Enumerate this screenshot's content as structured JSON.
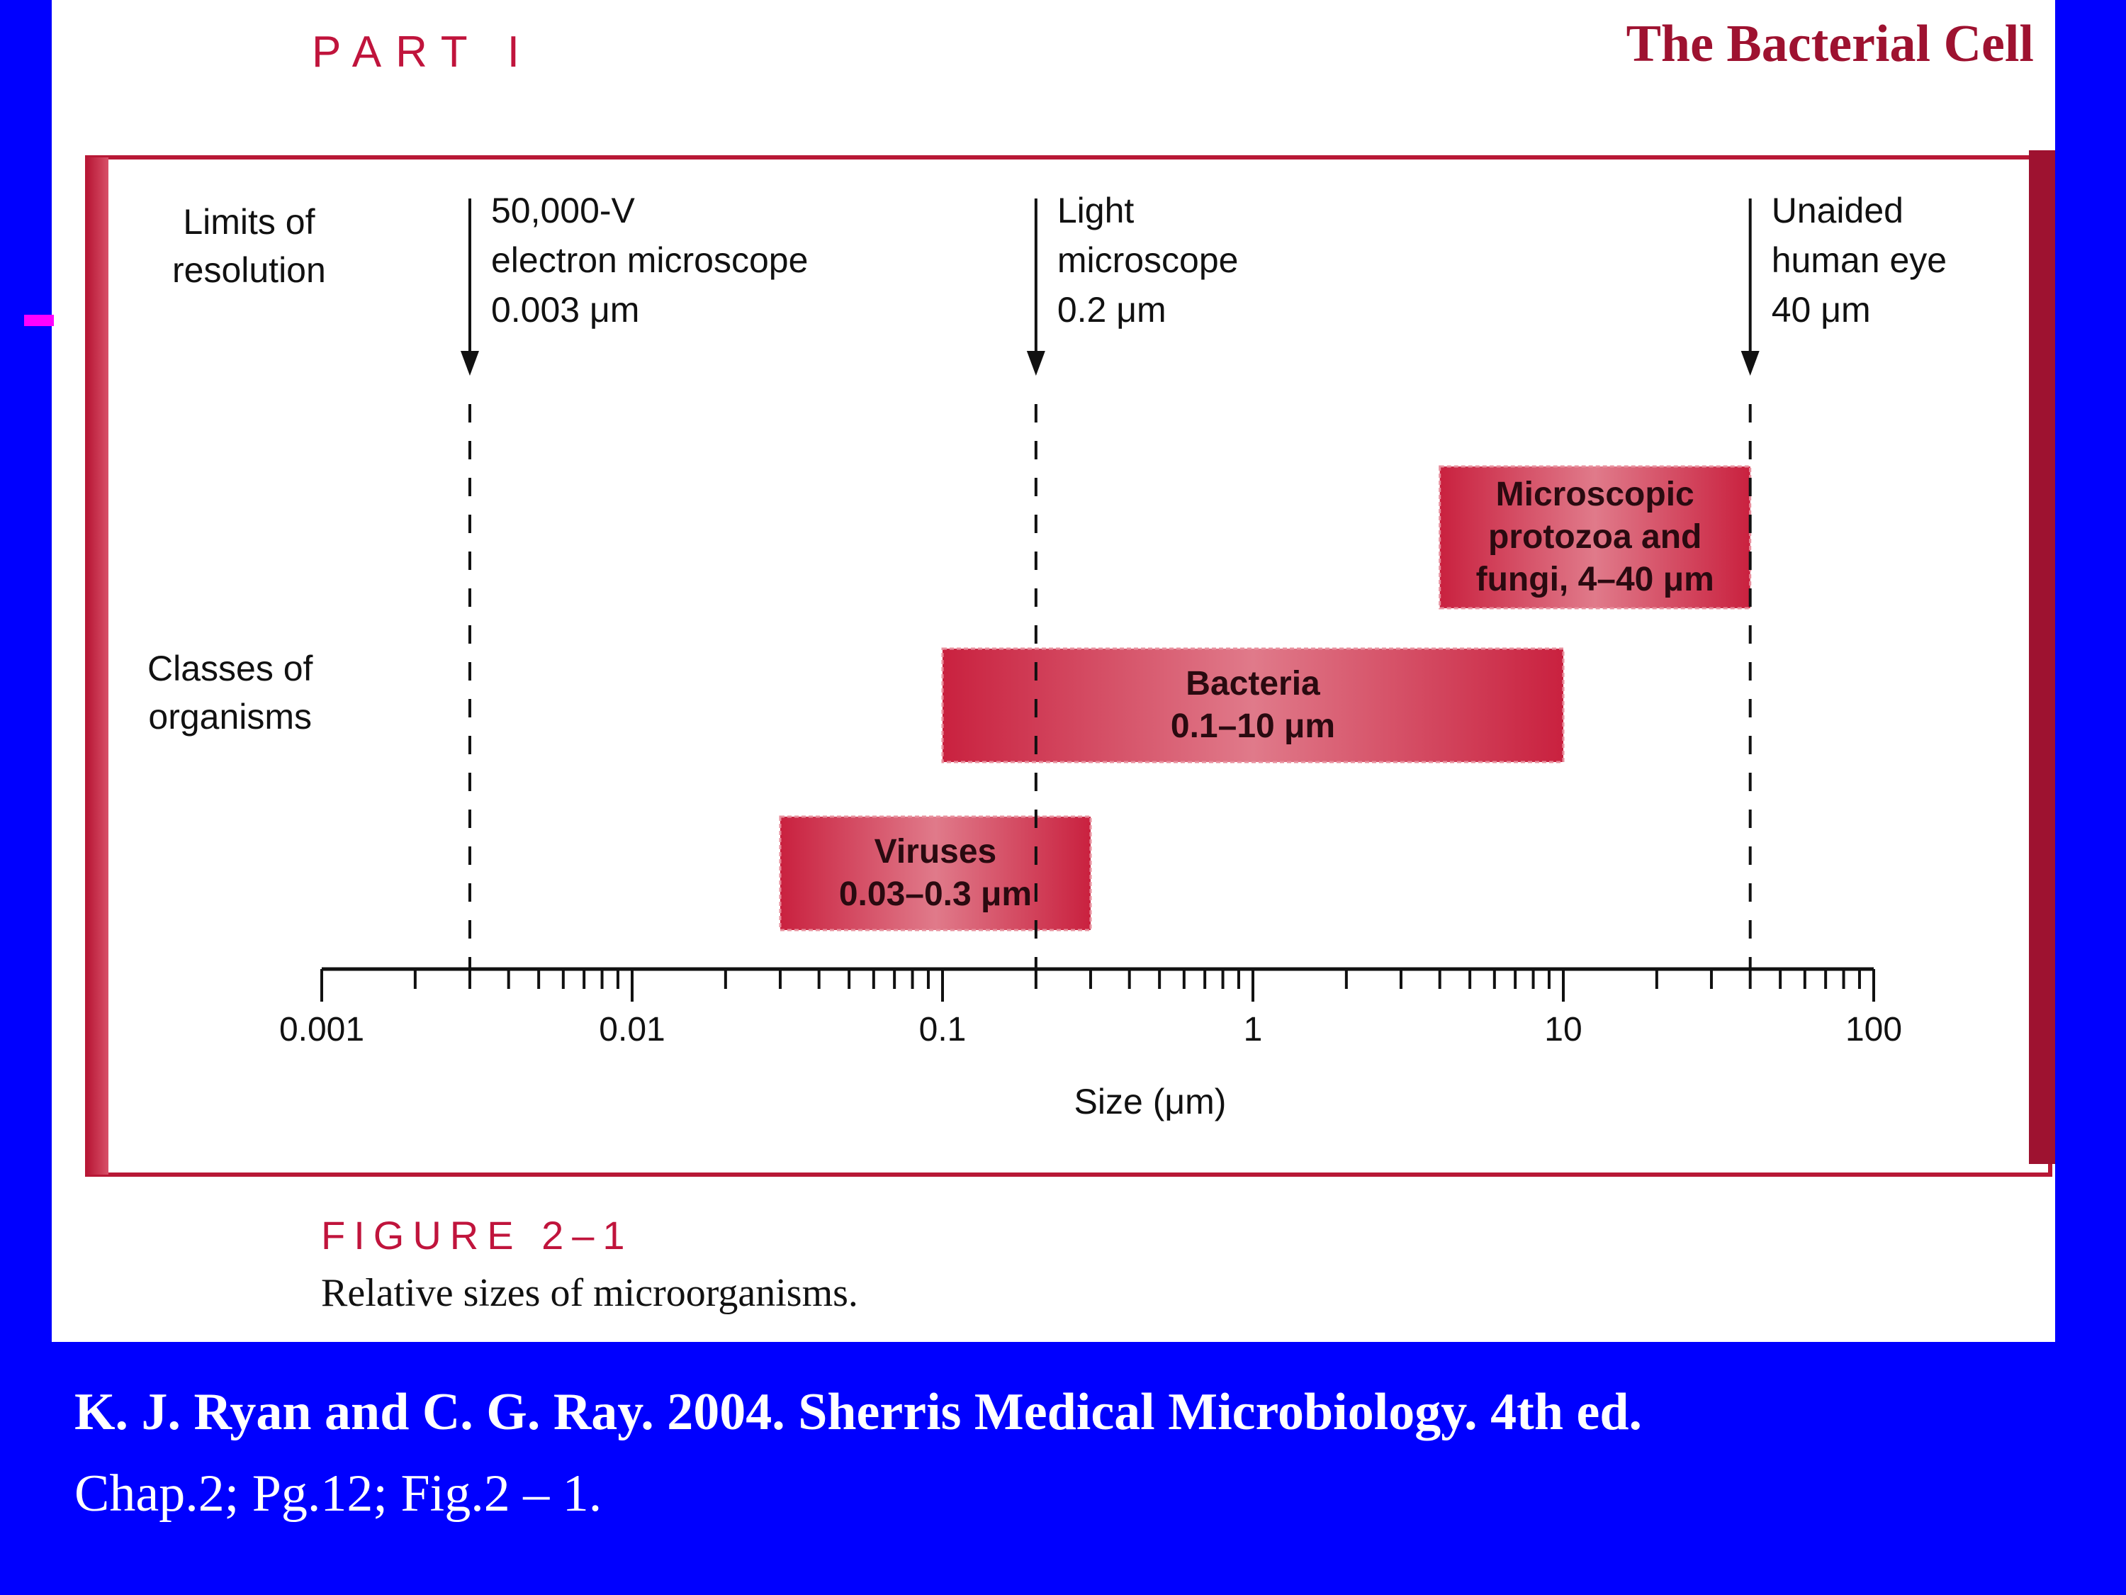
{
  "header": {
    "part": "PART I",
    "title": "The Bacterial Cell"
  },
  "rows": {
    "limits": [
      "Limits of",
      "resolution"
    ],
    "classes": [
      "Classes of",
      "organisms"
    ]
  },
  "chart_data": {
    "type": "bar",
    "orientation": "horizontal",
    "xscale": "log",
    "xlim": [
      0.001,
      100
    ],
    "xlabel": "Size (μm)",
    "ticks": [
      "0.001",
      "0.01",
      "0.1",
      "1",
      "10",
      "100"
    ],
    "resolution_limits": [
      {
        "value": 0.003,
        "lines": [
          "50,000-V",
          "electron microscope",
          "0.003 μm"
        ]
      },
      {
        "value": 0.2,
        "lines": [
          "Light",
          "microscope",
          "0.2 μm"
        ]
      },
      {
        "value": 40,
        "lines": [
          "Unaided",
          "human eye",
          "40 μm"
        ]
      }
    ],
    "ranges": [
      {
        "min": 0.03,
        "max": 0.3,
        "lines": [
          "Viruses",
          "0.03–0.3 μm"
        ]
      },
      {
        "min": 0.1,
        "max": 10,
        "lines": [
          "Bacteria",
          "0.1–10 μm"
        ]
      },
      {
        "min": 4,
        "max": 40,
        "lines": [
          "Microscopic",
          "protozoa and",
          "fungi, 4–40 μm"
        ]
      }
    ]
  },
  "figure": {
    "number": "FIGURE 2–1",
    "caption": "Relative sizes of microorganisms."
  },
  "citation": {
    "line1": "K. J. Ryan and C. G. Ray. 2004.  Sherris Medical Microbiology. 4th ed.",
    "line2": "Chap.2; Pg.12; Fig.2 – 1."
  },
  "colors": {
    "background": "#0000FF",
    "accent": "#C0143C",
    "bar": "#CF3A55"
  }
}
